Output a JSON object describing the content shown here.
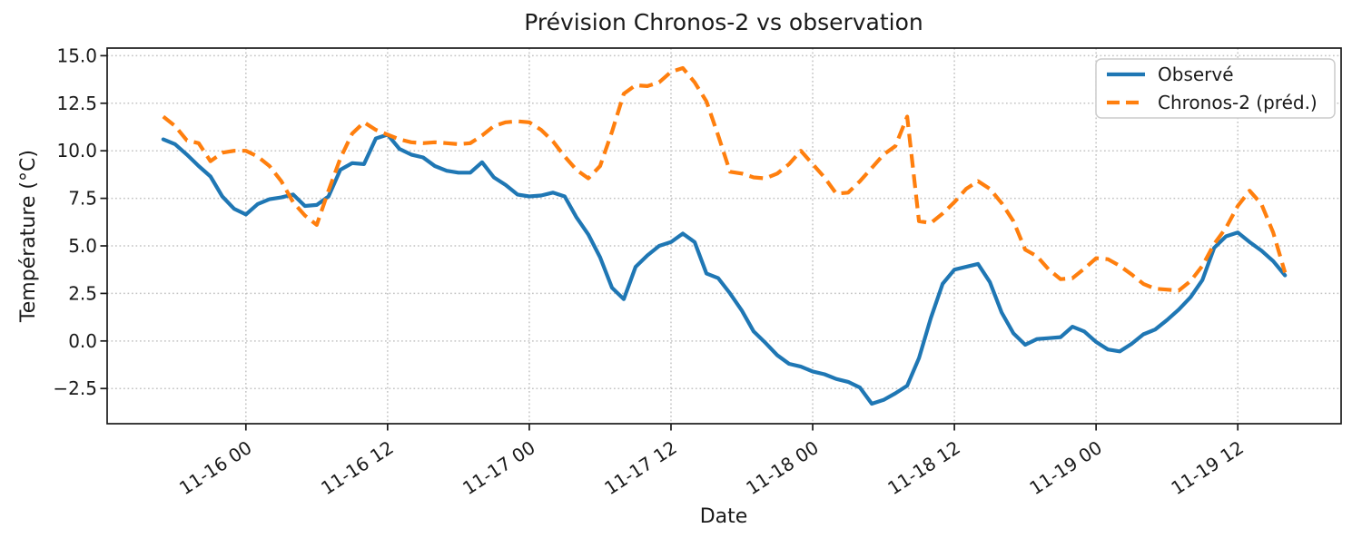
{
  "chart_data": {
    "type": "line",
    "title": "Prévision Chronos-2 vs observation",
    "xlabel": "Date",
    "ylabel": "Température (°C)",
    "grid": "dotted",
    "grid_color": "#c4c4c4",
    "background": "#ffffff",
    "legend_position": "upper right",
    "ylim": [
      -4.35,
      15.4
    ],
    "y_ticks": [
      {
        "value": 15.0,
        "label": "15.0"
      },
      {
        "value": 12.5,
        "label": "12.5"
      },
      {
        "value": 10.0,
        "label": "10.0"
      },
      {
        "value": 7.5,
        "label": "7.5"
      },
      {
        "value": 5.0,
        "label": "5.0"
      },
      {
        "value": 2.5,
        "label": "2.5"
      },
      {
        "value": 0.0,
        "label": "0.0"
      },
      {
        "value": -2.5,
        "label": "−2.5"
      }
    ],
    "x_ticks": [
      {
        "index": 7,
        "label": "11-16 00"
      },
      {
        "index": 19,
        "label": "11-16 12"
      },
      {
        "index": 31,
        "label": "11-17 00"
      },
      {
        "index": 43,
        "label": "11-17 12"
      },
      {
        "index": 55,
        "label": "11-18 00"
      },
      {
        "index": 67,
        "label": "11-18 12"
      },
      {
        "index": 79,
        "label": "11-19 00"
      },
      {
        "index": 91,
        "label": "11-19 12"
      }
    ],
    "x": [
      "11-15 17",
      "11-15 18",
      "11-15 19",
      "11-15 20",
      "11-15 21",
      "11-15 22",
      "11-15 23",
      "11-16 00",
      "11-16 01",
      "11-16 02",
      "11-16 03",
      "11-16 04",
      "11-16 05",
      "11-16 06",
      "11-16 07",
      "11-16 08",
      "11-16 09",
      "11-16 10",
      "11-16 11",
      "11-16 12",
      "11-16 13",
      "11-16 14",
      "11-16 15",
      "11-16 16",
      "11-16 17",
      "11-16 18",
      "11-16 19",
      "11-16 20",
      "11-16 21",
      "11-16 22",
      "11-16 23",
      "11-17 00",
      "11-17 01",
      "11-17 02",
      "11-17 03",
      "11-17 04",
      "11-17 05",
      "11-17 06",
      "11-17 07",
      "11-17 08",
      "11-17 09",
      "11-17 10",
      "11-17 11",
      "11-17 12",
      "11-17 13",
      "11-17 14",
      "11-17 15",
      "11-17 16",
      "11-17 17",
      "11-17 18",
      "11-17 19",
      "11-17 20",
      "11-17 21",
      "11-17 22",
      "11-17 23",
      "11-18 00",
      "11-18 01",
      "11-18 02",
      "11-18 03",
      "11-18 04",
      "11-18 05",
      "11-18 06",
      "11-18 07",
      "11-18 08",
      "11-18 09",
      "11-18 10",
      "11-18 11",
      "11-18 12",
      "11-18 13",
      "11-18 14",
      "11-18 15",
      "11-18 16",
      "11-18 17",
      "11-18 18",
      "11-18 19",
      "11-18 20",
      "11-18 21",
      "11-18 22",
      "11-18 23",
      "11-19 00",
      "11-19 01",
      "11-19 02",
      "11-19 03",
      "11-19 04",
      "11-19 05",
      "11-19 06",
      "11-19 07",
      "11-19 08",
      "11-19 09",
      "11-19 10",
      "11-19 11",
      "11-19 12",
      "11-19 13",
      "11-19 14",
      "11-19 15",
      "11-19 16"
    ],
    "series": [
      {
        "name": "Observé",
        "color": "#1f77b4",
        "line_style": "solid",
        "values": [
          10.6,
          10.35,
          9.8,
          9.2,
          8.65,
          7.6,
          6.95,
          6.65,
          7.2,
          7.45,
          7.55,
          7.7,
          7.1,
          7.15,
          7.6,
          9.0,
          9.35,
          9.3,
          10.65,
          10.85,
          10.1,
          9.8,
          9.65,
          9.2,
          8.95,
          8.85,
          8.85,
          9.4,
          8.6,
          8.2,
          7.7,
          7.6,
          7.65,
          7.8,
          7.6,
          6.5,
          5.6,
          4.4,
          2.8,
          2.2,
          3.9,
          4.5,
          5.0,
          5.2,
          5.65,
          5.2,
          3.55,
          3.3,
          2.5,
          1.6,
          0.5,
          -0.1,
          -0.75,
          -1.2,
          -1.35,
          -1.6,
          -1.75,
          -2.0,
          -2.15,
          -2.45,
          -3.3,
          -3.1,
          -2.75,
          -2.35,
          -0.9,
          1.2,
          3.0,
          3.75,
          3.9,
          4.05,
          3.1,
          1.5,
          0.4,
          -0.2,
          0.1,
          0.15,
          0.2,
          0.75,
          0.5,
          -0.05,
          -0.45,
          -0.55,
          -0.15,
          0.35,
          0.6,
          1.1,
          1.65,
          2.3,
          3.2,
          4.9,
          5.5,
          5.7,
          5.2,
          4.75,
          4.2,
          3.45
        ]
      },
      {
        "name": "Chronos-2 (préd.)",
        "color": "#ff7f0e",
        "line_style": "dashed",
        "values": [
          11.8,
          11.3,
          10.55,
          10.4,
          9.45,
          9.9,
          10.0,
          10.0,
          9.7,
          9.2,
          8.4,
          7.3,
          6.6,
          6.1,
          7.9,
          9.6,
          10.9,
          11.5,
          11.1,
          10.85,
          10.6,
          10.45,
          10.4,
          10.45,
          10.4,
          10.35,
          10.4,
          10.8,
          11.3,
          11.5,
          11.55,
          11.5,
          11.1,
          10.5,
          9.7,
          9.0,
          8.55,
          9.2,
          11.0,
          13.0,
          13.45,
          13.4,
          13.6,
          14.15,
          14.35,
          13.6,
          12.6,
          10.8,
          8.9,
          8.8,
          8.6,
          8.55,
          8.8,
          9.3,
          10.0,
          9.3,
          8.6,
          7.75,
          7.8,
          8.4,
          9.1,
          9.8,
          10.25,
          11.8,
          6.3,
          6.2,
          6.7,
          7.3,
          8.0,
          8.4,
          8.0,
          7.25,
          6.3,
          4.8,
          4.45,
          3.75,
          3.25,
          3.3,
          3.8,
          4.35,
          4.3,
          3.95,
          3.5,
          3.0,
          2.75,
          2.7,
          2.65,
          3.15,
          3.95,
          5.1,
          5.95,
          7.1,
          7.9,
          7.2,
          5.7,
          3.6
        ]
      }
    ]
  }
}
